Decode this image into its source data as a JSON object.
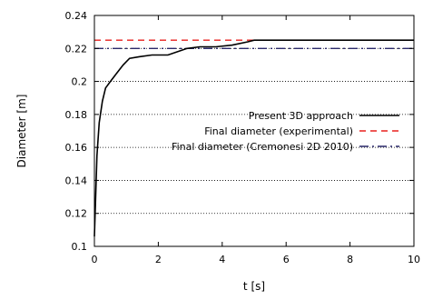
{
  "chart_data": {
    "type": "line",
    "xlabel": "t [s]",
    "ylabel": "Diameter [m]",
    "xlim": [
      0,
      10
    ],
    "ylim": [
      0.1,
      0.24
    ],
    "xticks": [
      "0",
      "2",
      "4",
      "6",
      "8",
      "10"
    ],
    "yticks": [
      "0.1",
      "0.12",
      "0.14",
      "0.16",
      "0.18",
      "0.2",
      "0.22",
      "0.24"
    ],
    "grid": "horizontal dotted",
    "legend_position": "center-right",
    "series": [
      {
        "name": "Present 3D approach",
        "color": "#000000",
        "style": "solid",
        "x": [
          0,
          0.03,
          0.08,
          0.15,
          0.25,
          0.35,
          0.5,
          0.7,
          0.9,
          1.1,
          1.4,
          1.8,
          2.3,
          2.6,
          2.9,
          3.3,
          3.8,
          4.3,
          4.8,
          5.0,
          5.5,
          6,
          7,
          8,
          9,
          10
        ],
        "values": [
          0.106,
          0.125,
          0.155,
          0.175,
          0.188,
          0.196,
          0.2,
          0.205,
          0.21,
          0.214,
          0.215,
          0.216,
          0.216,
          0.218,
          0.22,
          0.221,
          0.221,
          0.222,
          0.224,
          0.225,
          0.225,
          0.225,
          0.225,
          0.225,
          0.225,
          0.225
        ]
      },
      {
        "name": "Final diameter (experimental)",
        "color": "#e8211e",
        "style": "dashed",
        "x": [
          0,
          10
        ],
        "values": [
          0.225,
          0.225
        ]
      },
      {
        "name": "Final diameter (Cremonesi 2D 2010)",
        "color": "#2b2a6b",
        "style": "dash-dot",
        "x": [
          0,
          10
        ],
        "values": [
          0.22,
          0.22
        ]
      }
    ]
  }
}
